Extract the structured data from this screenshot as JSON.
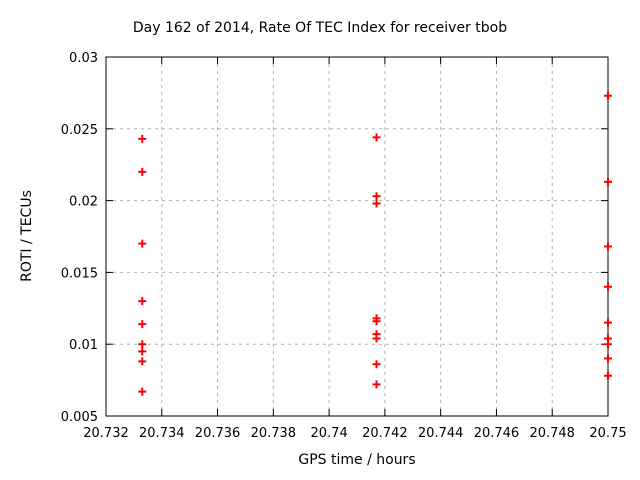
{
  "chart_data": {
    "type": "scatter",
    "title": "Day 162 of 2014, Rate Of TEC Index for receiver tbob",
    "xlabel": "GPS time / hours",
    "ylabel": "ROTI / TECUs",
    "xlim": [
      20.732,
      20.75
    ],
    "ylim": [
      0.005,
      0.03
    ],
    "grid": true,
    "legend": "none",
    "marker": "plus",
    "marker_color": "#ff0000",
    "grid_color": "#b0b0b0",
    "axis_color": "#000000",
    "text_color": "#000000",
    "xticks": [
      {
        "value": 20.732,
        "label": "20.732"
      },
      {
        "value": 20.734,
        "label": "20.734"
      },
      {
        "value": 20.736,
        "label": "20.736"
      },
      {
        "value": 20.738,
        "label": "20.738"
      },
      {
        "value": 20.74,
        "label": "20.74"
      },
      {
        "value": 20.742,
        "label": "20.742"
      },
      {
        "value": 20.744,
        "label": "20.744"
      },
      {
        "value": 20.746,
        "label": "20.746"
      },
      {
        "value": 20.748,
        "label": "20.748"
      },
      {
        "value": 20.75,
        "label": "20.75"
      }
    ],
    "yticks": [
      {
        "value": 0.005,
        "label": "0.005"
      },
      {
        "value": 0.01,
        "label": "0.01"
      },
      {
        "value": 0.015,
        "label": "0.015"
      },
      {
        "value": 0.02,
        "label": "0.02"
      },
      {
        "value": 0.025,
        "label": "0.025"
      },
      {
        "value": 0.03,
        "label": "0.03"
      }
    ],
    "series": [
      {
        "name": "ROTI",
        "points": [
          [
            20.7333,
            0.0243
          ],
          [
            20.7333,
            0.022
          ],
          [
            20.7333,
            0.017
          ],
          [
            20.7333,
            0.013
          ],
          [
            20.7333,
            0.0114
          ],
          [
            20.7333,
            0.01
          ],
          [
            20.7333,
            0.0095
          ],
          [
            20.7333,
            0.0088
          ],
          [
            20.7333,
            0.0067
          ],
          [
            20.7417,
            0.0244
          ],
          [
            20.7417,
            0.0203
          ],
          [
            20.7417,
            0.0198
          ],
          [
            20.7417,
            0.0118
          ],
          [
            20.7417,
            0.0116
          ],
          [
            20.7417,
            0.0107
          ],
          [
            20.7417,
            0.0104
          ],
          [
            20.7417,
            0.0086
          ],
          [
            20.7417,
            0.0072
          ],
          [
            20.75,
            0.0273
          ],
          [
            20.75,
            0.0213
          ],
          [
            20.75,
            0.0168
          ],
          [
            20.75,
            0.014
          ],
          [
            20.75,
            0.0115
          ],
          [
            20.75,
            0.0104
          ],
          [
            20.75,
            0.01
          ],
          [
            20.75,
            0.009
          ],
          [
            20.75,
            0.0078
          ]
        ]
      }
    ]
  }
}
